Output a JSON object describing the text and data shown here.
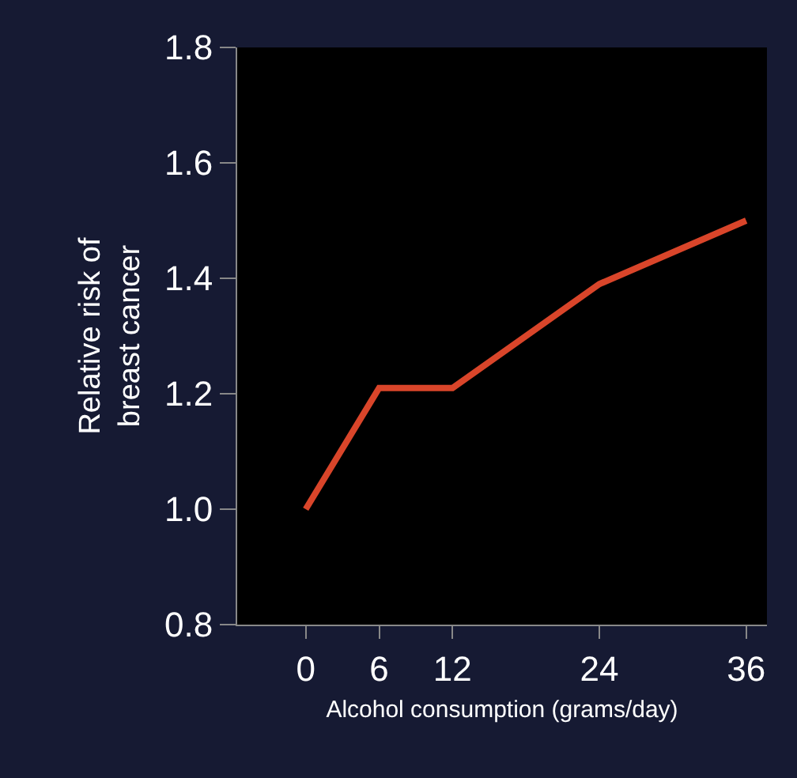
{
  "chart_data": {
    "type": "line",
    "xlabel": "Alcohol consumption (grams/day)",
    "ylabel": "Relative risk of\nbreast cancer",
    "x": [
      0,
      6,
      12,
      24,
      36
    ],
    "series": [
      {
        "color": "#d9452a",
        "values": [
          1.0,
          1.21,
          1.21,
          1.39,
          1.5
        ]
      }
    ],
    "xlim": [
      -5.6,
      37.7
    ],
    "xticks": [
      0,
      6,
      12,
      24,
      36
    ],
    "ylim": [
      0.8,
      1.8
    ],
    "yticks": [
      {
        "value": 0.8,
        "label": "0.8"
      },
      {
        "value": 1.0,
        "label": "1.0"
      },
      {
        "value": 1.2,
        "label": "1.2"
      },
      {
        "value": 1.4,
        "label": "1.4"
      },
      {
        "value": 1.6,
        "label": "1.6"
      },
      {
        "value": 1.8,
        "label": "1.8"
      }
    ],
    "grid": false,
    "legend": false,
    "marker": "none",
    "line_style": "solid"
  }
}
